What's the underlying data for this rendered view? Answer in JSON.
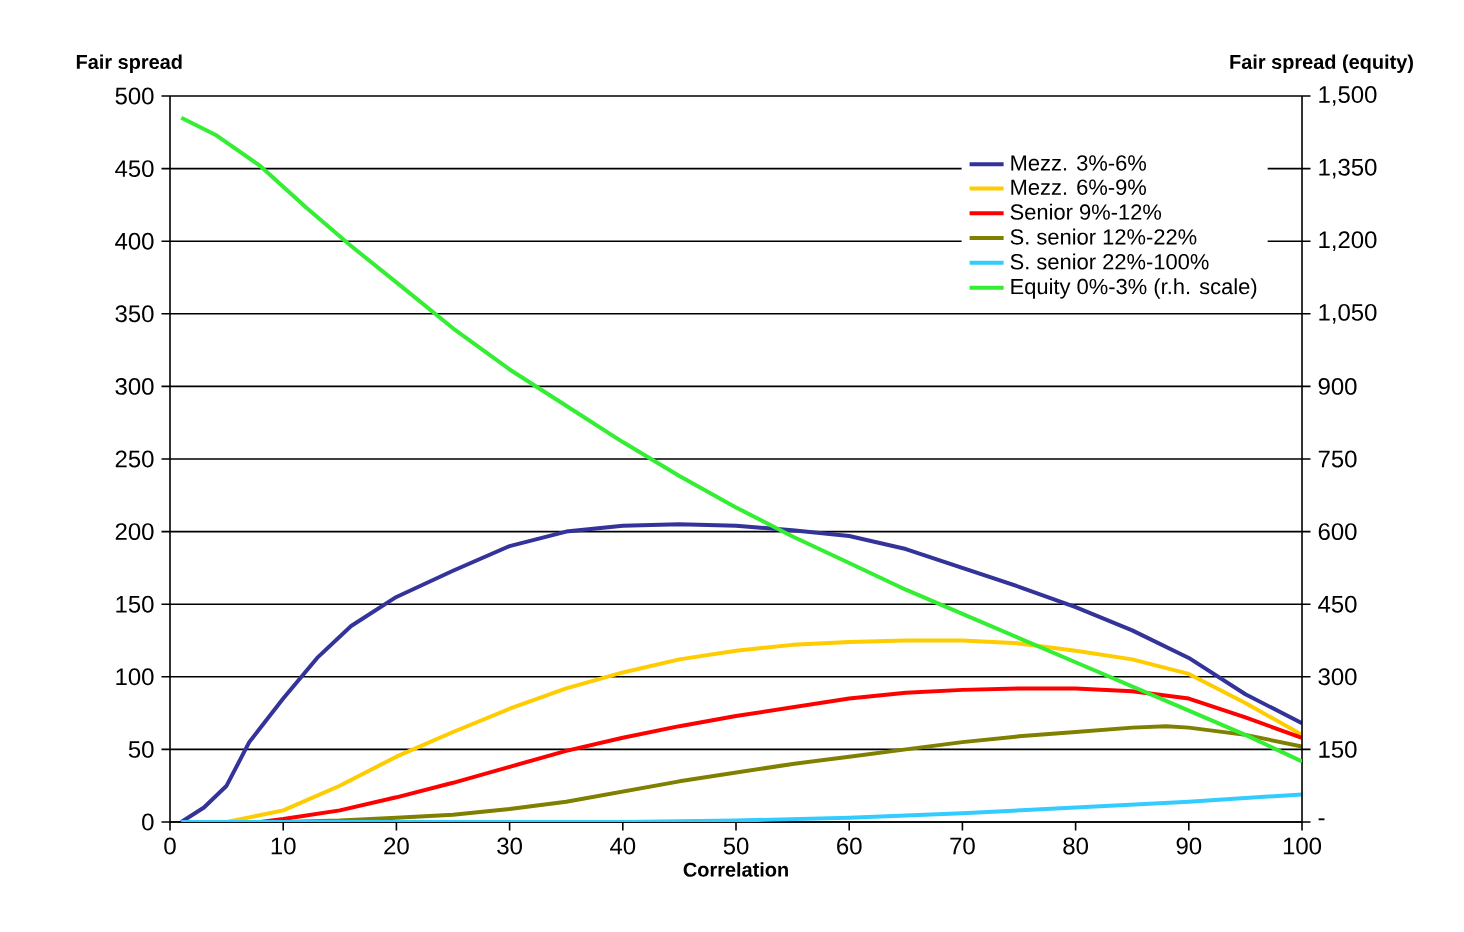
{
  "chart_data": {
    "type": "line",
    "ylabel": "Fair spread",
    "y2label": "Fair spread (equity)",
    "xlabel": "Correlation",
    "xlim": [
      0,
      100
    ],
    "xticks": [
      0,
      10,
      20,
      30,
      40,
      50,
      60,
      70,
      80,
      90,
      100
    ],
    "ylim": [
      0,
      500
    ],
    "yticks": [
      0,
      50,
      100,
      150,
      200,
      250,
      300,
      350,
      400,
      450,
      500
    ],
    "y2lim": [
      0,
      1500
    ],
    "y2ticks": [
      {
        "value": 0,
        "label": "-"
      },
      150,
      300,
      450,
      600,
      750,
      900,
      {
        "value": 1050,
        "label": "1,050"
      },
      {
        "value": 1200,
        "label": "1,200"
      },
      {
        "value": 1350,
        "label": "1,350"
      },
      {
        "value": 1500,
        "label": "1,500"
      }
    ],
    "grid": "y",
    "legend": "top right",
    "marker": "none",
    "line_style": "solid",
    "series": [
      {
        "name": "Mezz. 3%-6%",
        "color": "#333399",
        "x": [
          1,
          3,
          5,
          7,
          10,
          13,
          16,
          20,
          25,
          30,
          35,
          40,
          45,
          50,
          55,
          60,
          65,
          70,
          75,
          80,
          85,
          90,
          95,
          100
        ],
        "values": [
          0,
          10,
          25,
          55,
          85,
          113,
          135,
          155,
          173,
          190,
          200,
          204,
          205,
          204,
          201,
          197,
          188,
          175,
          162,
          148,
          132,
          113,
          88,
          68
        ]
      },
      {
        "name": "Mezz. 6%-9%",
        "color": "#ffcc00",
        "x": [
          1,
          5,
          10,
          15,
          20,
          25,
          30,
          35,
          40,
          45,
          50,
          55,
          60,
          65,
          70,
          75,
          80,
          85,
          90,
          95,
          100
        ],
        "values": [
          0,
          0,
          8,
          25,
          45,
          62,
          78,
          92,
          103,
          112,
          118,
          122,
          124,
          125,
          125,
          123,
          118,
          112,
          102,
          82,
          60
        ]
      },
      {
        "name": "Senior 9%-12%",
        "color": "#ff0000",
        "x": [
          1,
          8,
          10,
          15,
          20,
          25,
          30,
          35,
          40,
          45,
          50,
          55,
          60,
          65,
          70,
          75,
          80,
          85,
          90,
          95,
          100
        ],
        "values": [
          0,
          0,
          2,
          8,
          17,
          27,
          38,
          49,
          58,
          66,
          73,
          79,
          85,
          89,
          91,
          92,
          92,
          90,
          85,
          72,
          58
        ]
      },
      {
        "name": "S. senior 12%-22%",
        "color": "#808000",
        "x": [
          1,
          10,
          15,
          20,
          25,
          30,
          35,
          40,
          45,
          50,
          55,
          60,
          65,
          70,
          75,
          80,
          85,
          88,
          90,
          95,
          100
        ],
        "values": [
          0,
          0,
          1,
          3,
          5,
          9,
          14,
          21,
          28,
          34,
          40,
          45,
          50,
          55,
          59,
          62,
          65,
          66,
          65,
          60,
          52
        ]
      },
      {
        "name": "S. senior 22%-100%",
        "color": "#33ccff",
        "x": [
          1,
          10,
          20,
          30,
          40,
          50,
          60,
          70,
          80,
          90,
          100
        ],
        "values": [
          0,
          0,
          0,
          0,
          0,
          1,
          3,
          6,
          10,
          14,
          19
        ]
      },
      {
        "name": "Equity 0%-3% (r.h. scale)",
        "color": "#33ee33",
        "axis": "y2",
        "x": [
          1,
          4,
          8,
          12,
          16,
          20,
          25,
          30,
          35,
          40,
          45,
          50,
          55,
          60,
          65,
          70,
          75,
          80,
          85,
          90,
          95,
          100
        ],
        "values": [
          1455,
          1420,
          1355,
          1270,
          1190,
          1115,
          1020,
          935,
          860,
          785,
          715,
          650,
          590,
          535,
          480,
          430,
          380,
          330,
          280,
          230,
          180,
          125
        ]
      }
    ]
  }
}
